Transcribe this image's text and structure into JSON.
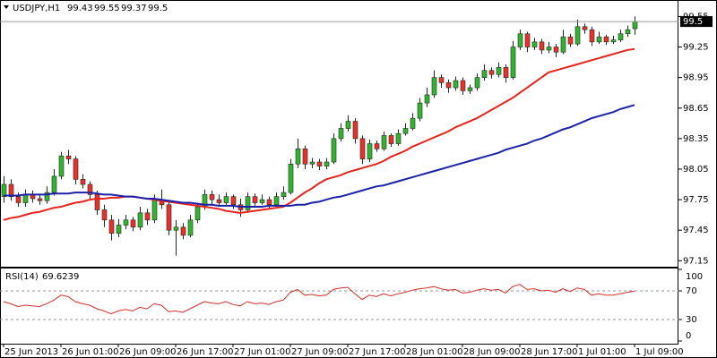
{
  "chart_data": [
    {
      "type": "candlestick",
      "title": "USDJPY,H1",
      "categories": [
        "25 Jun 2013",
        null,
        null,
        null,
        null,
        null,
        null,
        null,
        "26 Jun 01:00",
        null,
        null,
        null,
        null,
        null,
        null,
        null,
        "26 Jun 09:00",
        null,
        null,
        null,
        null,
        null,
        null,
        null,
        "26 Jun 17:00",
        null,
        null,
        null,
        null,
        null,
        null,
        null,
        "27 Jun 01:00",
        null,
        null,
        null,
        null,
        null,
        null,
        null,
        "27 Jun 09:00",
        null,
        null,
        null,
        null,
        null,
        null,
        null,
        "27 Jun 17:00",
        null,
        null,
        null,
        null,
        null,
        null,
        null,
        "28 Jun 01:00",
        null,
        null,
        null,
        null,
        null,
        null,
        null,
        "28 Jun 09:00",
        null,
        null,
        null,
        null,
        null,
        null,
        null,
        "28 Jun 17:00",
        null,
        null,
        null,
        null,
        null,
        null,
        null,
        "1 Jul 01:00",
        null,
        null,
        null,
        null,
        null,
        null,
        null,
        "1 Jul 09:00"
      ],
      "open": [
        97.78,
        97.9,
        97.78,
        97.72,
        97.8,
        97.76,
        97.74,
        97.82,
        97.98,
        98.18,
        98.15,
        97.95,
        97.9,
        97.8,
        97.65,
        97.55,
        97.42,
        97.5,
        97.55,
        97.48,
        97.62,
        97.55,
        97.75,
        97.7,
        97.45,
        97.48,
        97.4,
        97.55,
        97.68,
        97.8,
        97.75,
        97.72,
        97.78,
        97.7,
        97.65,
        97.78,
        97.72,
        97.75,
        97.7,
        97.78,
        97.82,
        98.1,
        98.25,
        98.1,
        98.12,
        98.08,
        98.12,
        98.35,
        98.45,
        98.52,
        98.35,
        98.15,
        98.3,
        98.25,
        98.38,
        98.3,
        98.4,
        98.45,
        98.55,
        98.7,
        98.78,
        98.95,
        98.9,
        98.85,
        98.92,
        98.82,
        98.85,
        98.95,
        99.02,
        98.98,
        99.05,
        98.95,
        99.25,
        99.38,
        99.25,
        99.3,
        99.22,
        99.25,
        99.2,
        99.35,
        99.28,
        99.45,
        99.42,
        99.3,
        99.35,
        99.3,
        99.32,
        99.38,
        99.43
      ],
      "high": [
        97.98,
        97.95,
        97.82,
        97.85,
        97.84,
        97.8,
        97.88,
        98.05,
        98.22,
        98.24,
        98.18,
        98.0,
        97.93,
        97.84,
        97.7,
        97.6,
        97.56,
        97.6,
        97.58,
        97.68,
        97.66,
        97.8,
        97.85,
        97.74,
        97.55,
        97.52,
        97.6,
        97.72,
        97.85,
        97.84,
        97.8,
        97.82,
        97.8,
        97.76,
        97.82,
        97.81,
        97.8,
        97.78,
        97.82,
        97.88,
        98.15,
        98.35,
        98.28,
        98.16,
        98.15,
        98.16,
        98.4,
        98.5,
        98.58,
        98.55,
        98.38,
        98.34,
        98.33,
        98.42,
        98.4,
        98.44,
        98.5,
        98.6,
        98.75,
        98.85,
        99.02,
        98.98,
        98.93,
        98.96,
        98.95,
        98.88,
        98.99,
        99.08,
        99.05,
        99.1,
        99.08,
        99.31,
        99.42,
        99.4,
        99.34,
        99.33,
        99.3,
        99.28,
        99.42,
        99.38,
        99.52,
        99.48,
        99.45,
        99.4,
        99.37,
        99.36,
        99.42,
        99.46,
        99.55
      ],
      "low": [
        97.72,
        97.74,
        97.68,
        97.68,
        97.72,
        97.7,
        97.71,
        97.79,
        97.95,
        98.1,
        97.9,
        97.86,
        97.76,
        97.6,
        97.48,
        97.35,
        97.38,
        97.46,
        97.44,
        97.45,
        97.5,
        97.52,
        97.66,
        97.4,
        97.2,
        97.36,
        97.38,
        97.52,
        97.65,
        97.7,
        97.68,
        97.7,
        97.66,
        97.58,
        97.62,
        97.69,
        97.7,
        97.66,
        97.68,
        97.75,
        97.8,
        98.06,
        98.05,
        98.06,
        98.04,
        98.05,
        98.1,
        98.32,
        98.42,
        98.3,
        98.1,
        98.12,
        98.22,
        98.23,
        98.27,
        98.28,
        98.38,
        98.43,
        98.52,
        98.66,
        98.75,
        98.85,
        98.8,
        98.82,
        98.78,
        98.79,
        98.82,
        98.92,
        98.94,
        98.95,
        98.9,
        98.93,
        99.22,
        99.2,
        99.22,
        99.18,
        99.19,
        99.15,
        99.18,
        99.25,
        99.26,
        99.38,
        99.26,
        99.28,
        99.27,
        99.28,
        99.3,
        99.35,
        99.37
      ],
      "close": [
        97.9,
        97.78,
        97.72,
        97.8,
        97.76,
        97.74,
        97.82,
        97.98,
        98.18,
        98.15,
        97.95,
        97.9,
        97.8,
        97.65,
        97.55,
        97.42,
        97.5,
        97.55,
        97.48,
        97.62,
        97.55,
        97.75,
        97.7,
        97.45,
        97.48,
        97.4,
        97.55,
        97.68,
        97.8,
        97.75,
        97.72,
        97.78,
        97.7,
        97.65,
        97.78,
        97.72,
        97.75,
        97.7,
        97.78,
        97.82,
        98.1,
        98.25,
        98.1,
        98.12,
        98.08,
        98.12,
        98.35,
        98.45,
        98.52,
        98.35,
        98.15,
        98.3,
        98.25,
        98.38,
        98.3,
        98.4,
        98.45,
        98.55,
        98.7,
        98.78,
        98.95,
        98.9,
        98.85,
        98.92,
        98.82,
        98.85,
        98.95,
        99.02,
        98.98,
        99.05,
        98.95,
        99.25,
        99.38,
        99.25,
        99.3,
        99.22,
        99.25,
        99.2,
        99.35,
        99.28,
        99.45,
        99.42,
        99.3,
        99.35,
        99.3,
        99.32,
        99.38,
        99.42,
        99.5
      ],
      "up_color": "#32b432",
      "down_color": "#e8312b",
      "wick_color": "#1e2a1e",
      "series": [
        {
          "color": "#e8231d",
          "values": [
            97.55,
            97.57,
            97.58,
            97.6,
            97.62,
            97.63,
            97.65,
            97.67,
            97.68,
            97.7,
            97.72,
            97.73,
            97.75,
            97.76,
            97.76,
            97.77,
            97.77,
            97.78,
            97.78,
            97.77,
            97.76,
            97.75,
            97.74,
            97.73,
            97.72,
            97.71,
            97.7,
            97.69,
            97.68,
            97.67,
            97.66,
            97.64,
            97.63,
            97.62,
            97.63,
            97.64,
            97.65,
            97.66,
            97.67,
            97.68,
            97.72,
            97.77,
            97.82,
            97.86,
            97.91,
            97.95,
            97.97,
            97.99,
            98.02,
            98.04,
            98.06,
            98.08,
            98.1,
            98.13,
            98.17,
            98.2,
            98.23,
            98.27,
            98.3,
            98.33,
            98.36,
            98.39,
            98.42,
            98.46,
            98.49,
            98.52,
            98.55,
            98.59,
            98.63,
            98.67,
            98.71,
            98.75,
            98.8,
            98.85,
            98.9,
            98.95,
            99.0,
            99.02,
            99.04,
            99.06,
            99.08,
            99.1,
            99.12,
            99.14,
            99.16,
            99.18,
            99.2,
            99.22,
            99.23
          ]
        },
        {
          "color": "#1c22a8",
          "values": [
            97.79,
            97.79,
            97.79,
            97.8,
            97.8,
            97.8,
            97.8,
            97.81,
            97.81,
            97.81,
            97.82,
            97.82,
            97.82,
            97.81,
            97.8,
            97.8,
            97.79,
            97.78,
            97.78,
            97.77,
            97.76,
            97.76,
            97.75,
            97.74,
            97.73,
            97.72,
            97.72,
            97.71,
            97.7,
            97.7,
            97.69,
            97.69,
            97.69,
            97.68,
            97.68,
            97.68,
            97.68,
            97.69,
            97.69,
            97.69,
            97.69,
            97.7,
            97.7,
            97.72,
            97.73,
            97.75,
            97.77,
            97.78,
            97.8,
            97.82,
            97.84,
            97.86,
            97.88,
            97.89,
            97.91,
            97.93,
            97.95,
            97.97,
            97.99,
            98.01,
            98.03,
            98.05,
            98.07,
            98.09,
            98.11,
            98.13,
            98.15,
            98.17,
            98.19,
            98.21,
            98.24,
            98.26,
            98.28,
            98.3,
            98.33,
            98.35,
            98.38,
            98.41,
            98.44,
            98.46,
            98.49,
            98.52,
            98.55,
            98.57,
            98.59,
            98.61,
            98.64,
            98.66,
            98.68
          ]
        }
      ],
      "ylim": [
        97.1,
        99.58
      ],
      "yticks": [
        97.15,
        97.45,
        97.75,
        98.05,
        98.35,
        98.65,
        98.95,
        99.25,
        99.55
      ]
    },
    {
      "type": "line",
      "title": "RSI(14)",
      "color": "#d0302a",
      "values": [
        55,
        52,
        48,
        50,
        49,
        48,
        52,
        57,
        64,
        62,
        55,
        52,
        50,
        45,
        42,
        38,
        42,
        44,
        42,
        47,
        45,
        52,
        50,
        41,
        42,
        40,
        45,
        50,
        55,
        53,
        52,
        55,
        51,
        49,
        55,
        52,
        53,
        51,
        55,
        57,
        68,
        72,
        64,
        65,
        63,
        64,
        72,
        74,
        75,
        66,
        58,
        64,
        62,
        66,
        63,
        66,
        68,
        71,
        73,
        74,
        76,
        73,
        71,
        72,
        67,
        68,
        71,
        73,
        71,
        72,
        67,
        76,
        79,
        72,
        73,
        70,
        71,
        68,
        73,
        69,
        74,
        72,
        64,
        66,
        64,
        64,
        66,
        68,
        69.6239
      ],
      "ylim": [
        0,
        100
      ],
      "yticks": [
        0,
        30,
        70,
        100
      ],
      "levels": [
        30,
        70
      ]
    }
  ]
}
